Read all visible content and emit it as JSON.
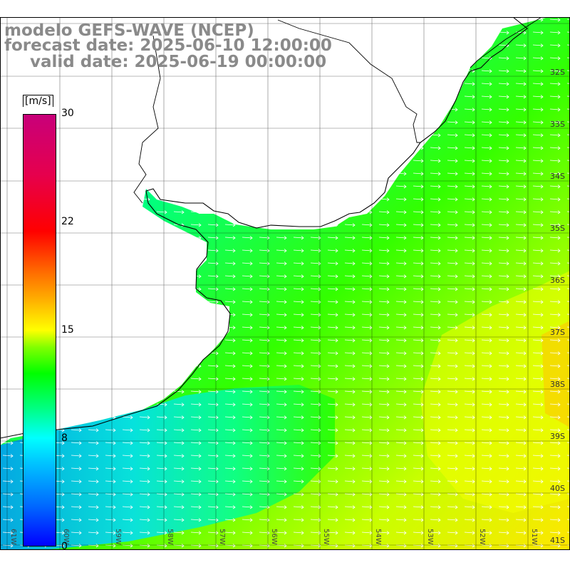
{
  "title": {
    "line1": "modelo GEFS-WAVE (NCEP)",
    "line2": "forecast date: 2025-06-10 12:00:00",
    "line3": "valid date: 2025-06-19 00:00:00"
  },
  "colorbar": {
    "unit": "[m/s]",
    "ticks": [
      "30",
      "22",
      "15",
      "8",
      "0"
    ],
    "colors": [
      "#0000ff",
      "#00ffff",
      "#00ff00",
      "#ffff00",
      "#ff6600",
      "#ff0000",
      "#c8007a"
    ]
  },
  "lat_labels": [
    "32S",
    "33S",
    "34S",
    "35S",
    "36S",
    "37S",
    "38S",
    "39S",
    "40S",
    "41S"
  ],
  "lon_labels": [
    "61W",
    "60W",
    "59W",
    "58W",
    "57W",
    "56W",
    "55W",
    "54W",
    "53W",
    "52W",
    "51W"
  ],
  "colors": {
    "land": "#ffffff",
    "coast": "#000000",
    "grid": "#000000",
    "arrow": "#ffffff",
    "title": "#8a8a8a"
  }
}
